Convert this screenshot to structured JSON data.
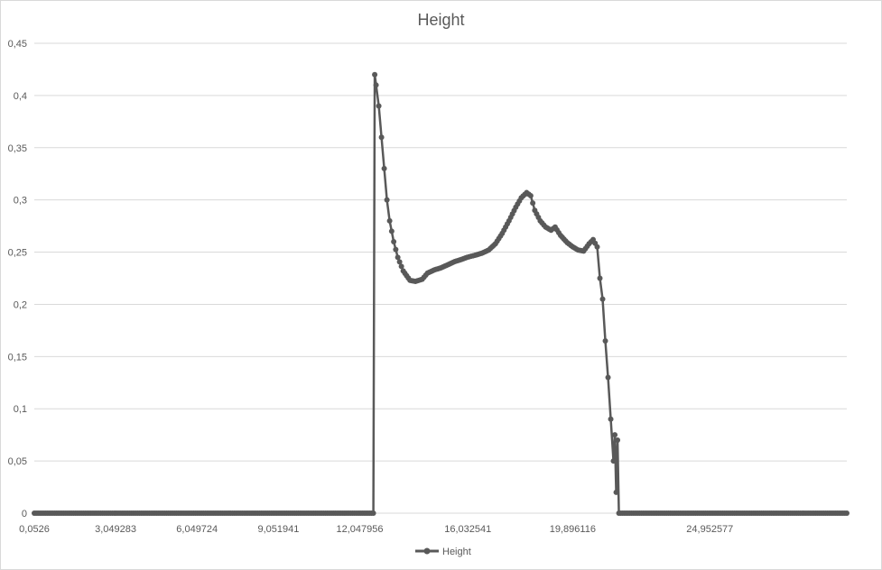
{
  "chart_data": {
    "type": "line",
    "title": "Height",
    "xlabel": "",
    "ylabel": "",
    "x_tick_labels": [
      "0,0526",
      "3,049283",
      "6,049724",
      "9,051941",
      "12,047956",
      "16,032541",
      "19,896116",
      "24,952577"
    ],
    "y_tick_labels": [
      "0",
      "0,05",
      "0,1",
      "0,15",
      "0,2",
      "0,25",
      "0,3",
      "0,35",
      "0,4",
      "0,45"
    ],
    "ylim": [
      0,
      0.45
    ],
    "xlim": [
      0.0526,
      30.0
    ],
    "grid": true,
    "legend_position": "bottom",
    "series": [
      {
        "name": "Height",
        "color": "#595959",
        "marker": "circle",
        "points": [
          [
            0.0526,
            0
          ],
          [
            1,
            0
          ],
          [
            2,
            0
          ],
          [
            3,
            0
          ],
          [
            4,
            0
          ],
          [
            5,
            0
          ],
          [
            6,
            0
          ],
          [
            7,
            0
          ],
          [
            8,
            0
          ],
          [
            9,
            0
          ],
          [
            10,
            0
          ],
          [
            11,
            0
          ],
          [
            12,
            0
          ],
          [
            12.55,
            0
          ],
          [
            12.6,
            0.42
          ],
          [
            12.65,
            0.41
          ],
          [
            12.75,
            0.39
          ],
          [
            12.85,
            0.36
          ],
          [
            12.95,
            0.33
          ],
          [
            13.05,
            0.3
          ],
          [
            13.15,
            0.28
          ],
          [
            13.3,
            0.26
          ],
          [
            13.45,
            0.245
          ],
          [
            13.65,
            0.232
          ],
          [
            13.9,
            0.223
          ],
          [
            14.1,
            0.222
          ],
          [
            14.35,
            0.224
          ],
          [
            14.55,
            0.23
          ],
          [
            14.8,
            0.233
          ],
          [
            15.05,
            0.235
          ],
          [
            15.3,
            0.238
          ],
          [
            15.55,
            0.241
          ],
          [
            15.8,
            0.243
          ],
          [
            16.0,
            0.245
          ],
          [
            16.3,
            0.247
          ],
          [
            16.55,
            0.249
          ],
          [
            16.8,
            0.252
          ],
          [
            17.05,
            0.258
          ],
          [
            17.3,
            0.268
          ],
          [
            17.55,
            0.28
          ],
          [
            17.8,
            0.293
          ],
          [
            18.0,
            0.302
          ],
          [
            18.2,
            0.307
          ],
          [
            18.35,
            0.304
          ],
          [
            18.5,
            0.29
          ],
          [
            18.7,
            0.28
          ],
          [
            18.9,
            0.274
          ],
          [
            19.1,
            0.271
          ],
          [
            19.25,
            0.274
          ],
          [
            19.45,
            0.266
          ],
          [
            19.7,
            0.259
          ],
          [
            19.9,
            0.255
          ],
          [
            20.1,
            0.252
          ],
          [
            20.3,
            0.251
          ],
          [
            20.5,
            0.258
          ],
          [
            20.65,
            0.262
          ],
          [
            20.8,
            0.255
          ],
          [
            20.9,
            0.225
          ],
          [
            21.0,
            0.205
          ],
          [
            21.1,
            0.165
          ],
          [
            21.2,
            0.13
          ],
          [
            21.3,
            0.09
          ],
          [
            21.4,
            0.05
          ],
          [
            21.45,
            0.075
          ],
          [
            21.5,
            0.02
          ],
          [
            21.55,
            0.07
          ],
          [
            21.6,
            0
          ],
          [
            22,
            0
          ],
          [
            23,
            0
          ],
          [
            24,
            0
          ],
          [
            25,
            0
          ],
          [
            26,
            0
          ],
          [
            27,
            0
          ],
          [
            28,
            0
          ],
          [
            29,
            0
          ],
          [
            30.0,
            0
          ]
        ]
      }
    ]
  }
}
